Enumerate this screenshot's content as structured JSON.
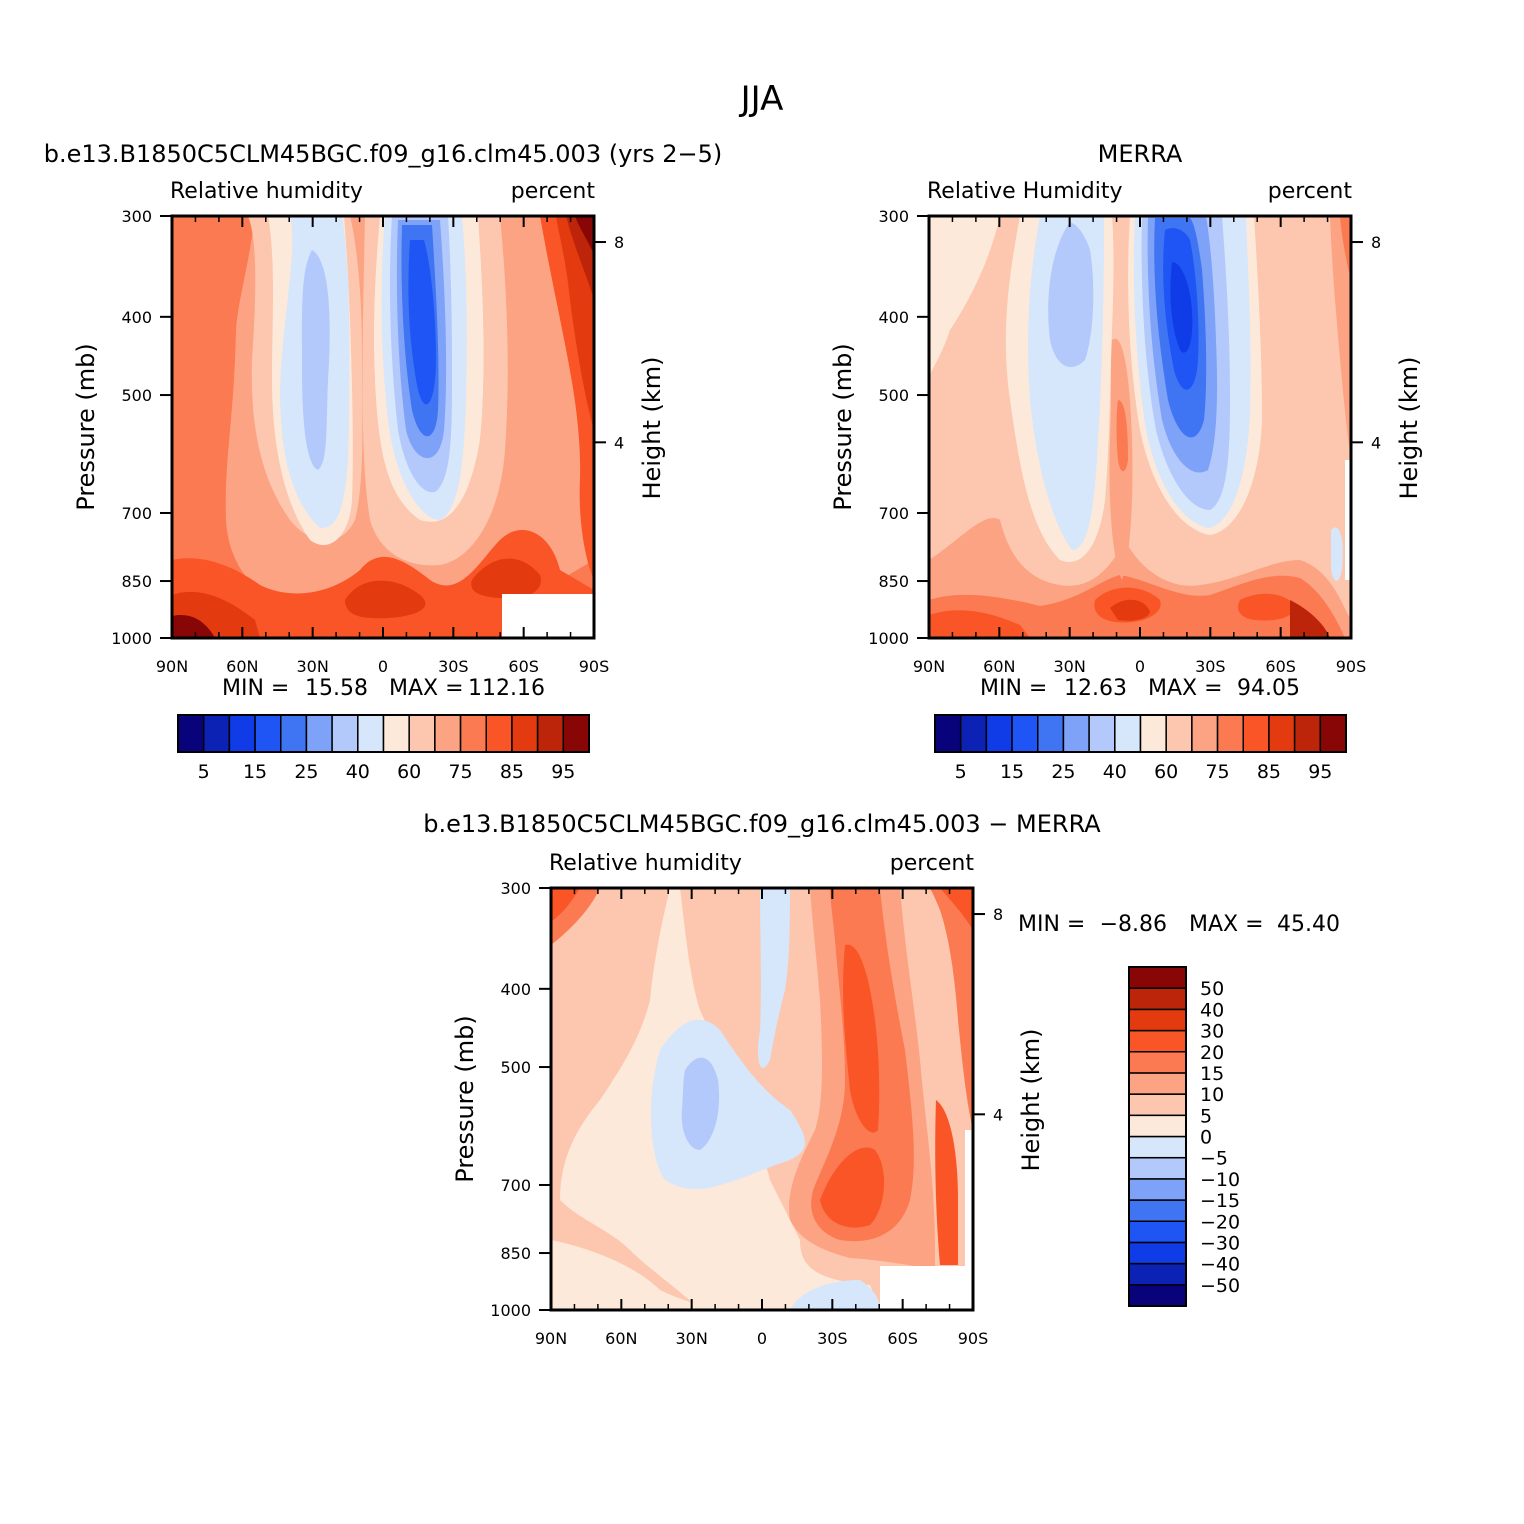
{
  "figure": {
    "title": "JJA"
  },
  "colors": {
    "rh_palette": [
      "#08037a",
      "#0b22b5",
      "#0f3ce6",
      "#1f55f5",
      "#3f75f3",
      "#7ea2f7",
      "#b4c9fb",
      "#d6e6fb",
      "#fde9da",
      "#fcc7ae",
      "#fca383",
      "#fb7a52",
      "#fa5526",
      "#e33a10",
      "#bc250a",
      "#880606"
    ],
    "diff_palette": [
      "#08037a",
      "#0b22b5",
      "#0f3ce6",
      "#1f55f5",
      "#3f75f3",
      "#7ea2f7",
      "#b4c9fb",
      "#d6e6fb",
      "#fde9da",
      "#fcc7ae",
      "#fca383",
      "#fb7a52",
      "#fa5526",
      "#e33a10",
      "#bc250a",
      "#880606"
    ]
  },
  "panels": {
    "model": {
      "title": "b.e13.B1850C5CLM45BGC.f09_g16.clm45.003 (yrs 2−5)",
      "left_string": "Relative  humidity",
      "right_string": "percent",
      "ylabel": "Pressure (mb)",
      "ylabel2": "Height (km)",
      "min_label": "MIN =",
      "min_value": "15.58",
      "max_label": "MAX =",
      "max_value": "112.16"
    },
    "obs": {
      "title": "MERRA",
      "left_string": "Relative  Humidity",
      "right_string": "percent",
      "ylabel": "Pressure (mb)",
      "ylabel2": "Height (km)",
      "min_label": "MIN =",
      "min_value": "12.63",
      "max_label": "MAX =",
      "max_value": "94.05"
    },
    "diff": {
      "title": "b.e13.B1850C5CLM45BGC.f09_g16.clm45.003 − MERRA",
      "left_string": "Relative  humidity",
      "right_string": "percent",
      "ylabel": "Pressure (mb)",
      "ylabel2": "Height (km)",
      "min_label": "MIN =",
      "min_value": "−8.86",
      "max_label": "MAX =",
      "max_value": "45.40"
    }
  },
  "axes": {
    "x_ticks": [
      "90N",
      "60N",
      "30N",
      "0",
      "30S",
      "60S",
      "90S"
    ],
    "y_ticks": [
      "300",
      "400",
      "500",
      "700",
      "850",
      "1000"
    ],
    "height_ticks": [
      "8",
      "4"
    ]
  },
  "colorbars": {
    "rh_labels": [
      "5",
      "15",
      "25",
      "40",
      "60",
      "75",
      "85",
      "95"
    ],
    "diff_labels": [
      "50",
      "40",
      "30",
      "20",
      "15",
      "10",
      "5",
      "0",
      "−5",
      "−10",
      "−15",
      "−20",
      "−30",
      "−40",
      "−50"
    ]
  },
  "chart_data": [
    {
      "type": "heatmap",
      "title": "b.e13.B1850C5CLM45BGC.f09_g16.clm45.003 (yrs 2−5)",
      "xlabel": "",
      "ylabel": "Pressure (mb)",
      "x": [
        "90N",
        "60N",
        "30N",
        "0",
        "30S",
        "60S",
        "90S"
      ],
      "y": [
        300,
        400,
        500,
        700,
        850,
        1000
      ],
      "levels": [
        5,
        10,
        15,
        20,
        25,
        30,
        40,
        50,
        60,
        70,
        75,
        80,
        85,
        90,
        95
      ],
      "min": 15.58,
      "max": 112.16
    },
    {
      "type": "heatmap",
      "title": "MERRA",
      "xlabel": "",
      "ylabel": "Pressure (mb)",
      "x": [
        "90N",
        "60N",
        "30N",
        "0",
        "30S",
        "60S",
        "90S"
      ],
      "y": [
        300,
        400,
        500,
        700,
        850,
        1000
      ],
      "levels": [
        5,
        10,
        15,
        20,
        25,
        30,
        40,
        50,
        60,
        70,
        75,
        80,
        85,
        90,
        95
      ],
      "min": 12.63,
      "max": 94.05
    },
    {
      "type": "heatmap",
      "title": "b.e13.B1850C5CLM45BGC.f09_g16.clm45.003 − MERRA",
      "xlabel": "",
      "ylabel": "Pressure (mb)",
      "x": [
        "90N",
        "60N",
        "30N",
        "0",
        "30S",
        "60S",
        "90S"
      ],
      "y": [
        300,
        400,
        500,
        700,
        850,
        1000
      ],
      "levels": [
        -50,
        -40,
        -30,
        -20,
        -15,
        -10,
        -5,
        0,
        5,
        10,
        15,
        20,
        30,
        40,
        50
      ],
      "min": -8.86,
      "max": 45.4
    }
  ]
}
